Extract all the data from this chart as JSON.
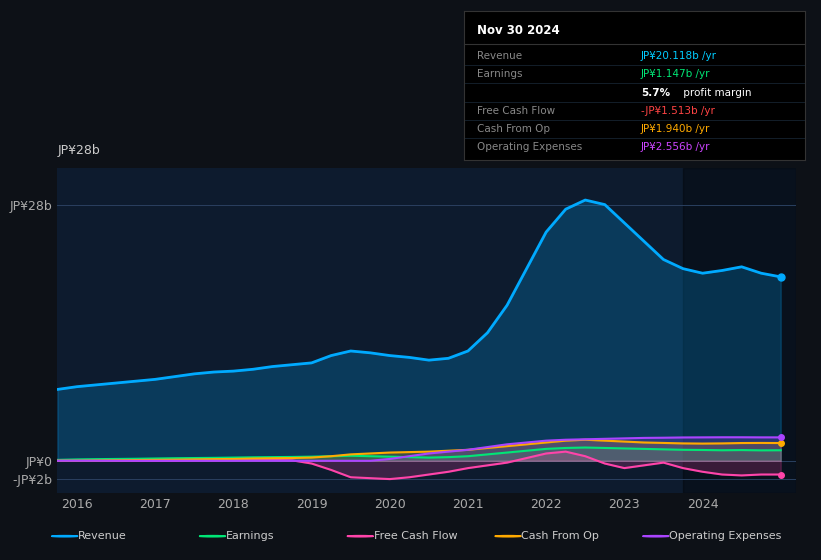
{
  "bg_color": "#0d1117",
  "plot_bg_color": "#0d1b2e",
  "title_box": {
    "date": "Nov 30 2024",
    "rows": [
      {
        "label": "Revenue",
        "value": "JP¥20.118b /yr",
        "value_color": "#00ccff"
      },
      {
        "label": "Earnings",
        "value": "JP¥1.147b /yr",
        "value_color": "#00e676"
      },
      {
        "label": "",
        "value": "5.7% profit margin",
        "value_color": "#ffffff"
      },
      {
        "label": "Free Cash Flow",
        "value": "-JP¥1.513b /yr",
        "value_color": "#ff4444"
      },
      {
        "label": "Cash From Op",
        "value": "JP¥1.940b /yr",
        "value_color": "#ffaa00"
      },
      {
        "label": "Operating Expenses",
        "value": "JP¥2.556b /yr",
        "value_color": "#cc44ff"
      }
    ]
  },
  "years": [
    2015.75,
    2016.0,
    2016.25,
    2016.5,
    2016.75,
    2017.0,
    2017.25,
    2017.5,
    2017.75,
    2018.0,
    2018.25,
    2018.5,
    2018.75,
    2019.0,
    2019.25,
    2019.5,
    2019.75,
    2020.0,
    2020.25,
    2020.5,
    2020.75,
    2021.0,
    2021.25,
    2021.5,
    2021.75,
    2022.0,
    2022.25,
    2022.5,
    2022.75,
    2023.0,
    2023.25,
    2023.5,
    2023.75,
    2024.0,
    2024.25,
    2024.5,
    2024.75,
    2025.0
  ],
  "revenue": [
    7.8,
    8.1,
    8.3,
    8.5,
    8.7,
    8.9,
    9.2,
    9.5,
    9.7,
    9.8,
    10.0,
    10.3,
    10.5,
    10.7,
    11.5,
    12.0,
    11.8,
    11.5,
    11.3,
    11.0,
    11.2,
    12.0,
    14.0,
    17.0,
    21.0,
    25.0,
    27.5,
    28.5,
    28.0,
    26.0,
    24.0,
    22.0,
    21.0,
    20.5,
    20.8,
    21.2,
    20.5,
    20.1
  ],
  "earnings": [
    0.1,
    0.15,
    0.18,
    0.2,
    0.22,
    0.25,
    0.28,
    0.3,
    0.32,
    0.35,
    0.38,
    0.4,
    0.42,
    0.45,
    0.5,
    0.55,
    0.5,
    0.45,
    0.4,
    0.35,
    0.4,
    0.5,
    0.7,
    0.9,
    1.1,
    1.3,
    1.4,
    1.45,
    1.4,
    1.35,
    1.3,
    1.25,
    1.2,
    1.18,
    1.15,
    1.17,
    1.14,
    1.15
  ],
  "free_cash_flow": [
    0.0,
    0.0,
    0.0,
    0.0,
    0.0,
    0.0,
    0.0,
    0.05,
    0.05,
    0.08,
    0.1,
    0.1,
    0.05,
    -0.3,
    -1.0,
    -1.8,
    -1.9,
    -2.0,
    -1.8,
    -1.5,
    -1.2,
    -0.8,
    -0.5,
    -0.2,
    0.3,
    0.8,
    1.0,
    0.5,
    -0.3,
    -0.8,
    -0.5,
    -0.2,
    -0.8,
    -1.2,
    -1.5,
    -1.6,
    -1.5,
    -1.5
  ],
  "cash_from_op": [
    0.0,
    0.0,
    0.02,
    0.05,
    0.08,
    0.1,
    0.12,
    0.15,
    0.18,
    0.2,
    0.25,
    0.28,
    0.3,
    0.35,
    0.5,
    0.7,
    0.8,
    0.9,
    0.95,
    1.0,
    1.1,
    1.2,
    1.4,
    1.6,
    1.8,
    2.0,
    2.2,
    2.3,
    2.2,
    2.1,
    2.0,
    1.95,
    1.9,
    1.88,
    1.9,
    1.94,
    1.95,
    1.94
  ],
  "operating_expenses": [
    0.0,
    0.0,
    0.0,
    0.0,
    0.0,
    0.0,
    0.0,
    0.0,
    0.0,
    0.0,
    0.0,
    0.0,
    0.0,
    0.0,
    0.0,
    0.0,
    0.0,
    0.2,
    0.5,
    0.8,
    1.0,
    1.2,
    1.5,
    1.8,
    2.0,
    2.2,
    2.3,
    2.35,
    2.4,
    2.45,
    2.5,
    2.52,
    2.55,
    2.56,
    2.57,
    2.57,
    2.56,
    2.56
  ],
  "revenue_color": "#00aaff",
  "earnings_color": "#00e676",
  "fcf_color": "#ff44aa",
  "cashop_color": "#ffaa00",
  "opex_color": "#aa44ff",
  "ylim": [
    -3.5,
    32.0
  ],
  "xlim": [
    2015.75,
    2025.2
  ],
  "yticks": [
    -2,
    0,
    28
  ],
  "ytick_labels": [
    "-JP¥2b",
    "JP¥0",
    "JP¥28b"
  ],
  "xticks": [
    2016,
    2017,
    2018,
    2019,
    2020,
    2021,
    2022,
    2023,
    2024
  ],
  "shade_start": 2023.75,
  "legend_items": [
    {
      "label": "Revenue",
      "color": "#00aaff"
    },
    {
      "label": "Earnings",
      "color": "#00e676"
    },
    {
      "label": "Free Cash Flow",
      "color": "#ff44aa"
    },
    {
      "label": "Cash From Op",
      "color": "#ffaa00"
    },
    {
      "label": "Operating Expenses",
      "color": "#aa44ff"
    }
  ]
}
